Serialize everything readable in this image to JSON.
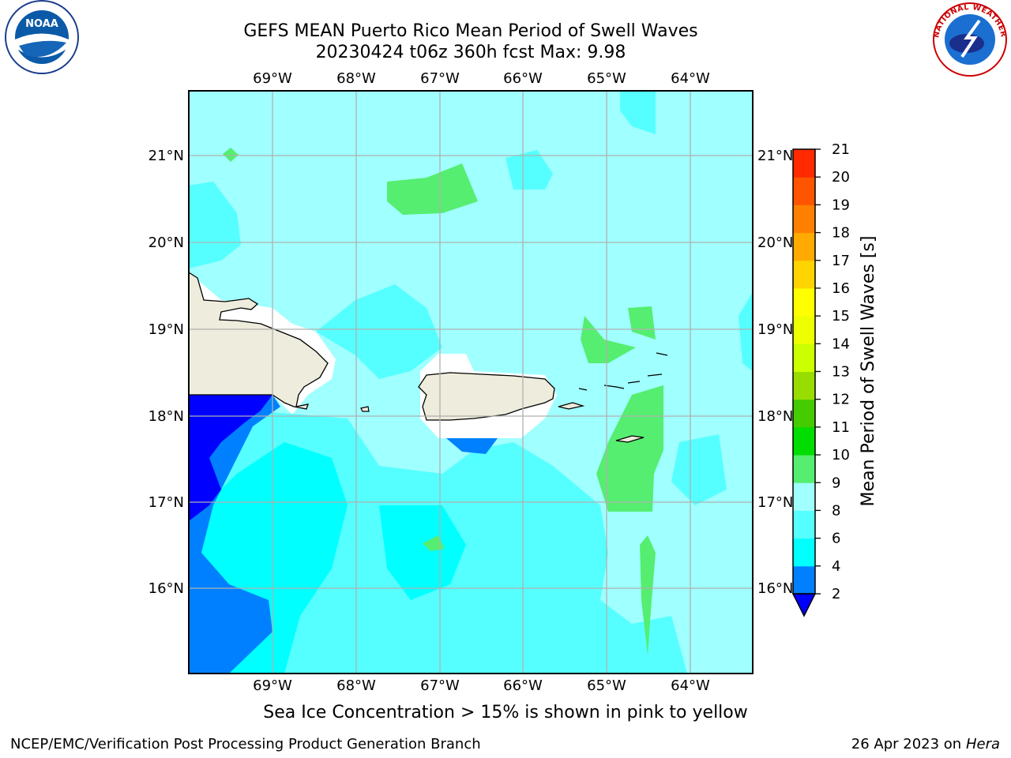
{
  "title": {
    "line1": "GEFS MEAN Puerto Rico Mean Period of Swell Waves",
    "line2": "20230424 t06z 360h fcst   Max: 9.98"
  },
  "map": {
    "lon_ticks": [
      "69°W",
      "68°W",
      "67°W",
      "66°W",
      "65°W",
      "64°W"
    ],
    "lat_ticks": [
      "21°N",
      "20°N",
      "19°N",
      "18°N",
      "17°N",
      "16°N"
    ],
    "lon_range": [
      -70,
      -63.25
    ],
    "lat_range": [
      15.0,
      21.75
    ]
  },
  "colorbar": {
    "label": "Mean Period of Swell Waves [s]",
    "levels": [
      2,
      4,
      6,
      8,
      9,
      10,
      11,
      12,
      13,
      14,
      15,
      16,
      17,
      18,
      19,
      20,
      21
    ],
    "colors": [
      "#0080ff",
      "#00ffff",
      "#55ffff",
      "#a0ffff",
      "#55ee70",
      "#00dd00",
      "#44cc00",
      "#99dd00",
      "#ccff00",
      "#eeff00",
      "#ffff00",
      "#ffd400",
      "#ffaa00",
      "#ff8000",
      "#ff5500",
      "#ff2a00"
    ],
    "under_color": "#0000ff"
  },
  "caption": "Sea Ice Concentration > 15% is shown in pink to yellow",
  "footer": {
    "left": "NCEP/EMC/Verification Post Processing Product Generation Branch",
    "date": "26 Apr 2023 on ",
    "host": "Hera"
  },
  "logos": {
    "noaa": {
      "text": "NOAA"
    },
    "nws": {
      "text": "NATIONAL WEATHER SERVICE"
    }
  },
  "colors": {
    "land": "#eeecdc",
    "grid": "#b0b0b0"
  }
}
